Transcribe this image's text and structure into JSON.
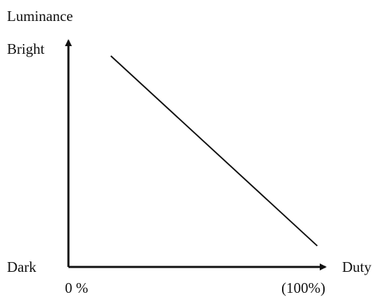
{
  "chart_data": {
    "type": "line",
    "title": "",
    "xlabel": "Duty",
    "ylabel": "Luminance",
    "x_ticks": [
      "0 %",
      "(100%)"
    ],
    "y_ticks": [
      "Dark",
      "Bright"
    ],
    "xlim": [
      0,
      100
    ],
    "ylim": [
      0,
      100
    ],
    "grid": false,
    "series": [
      {
        "x": [
          15,
          88
        ],
        "y": [
          100,
          10
        ]
      }
    ],
    "colors": {
      "axis": "#111111",
      "line": "#111111"
    }
  }
}
